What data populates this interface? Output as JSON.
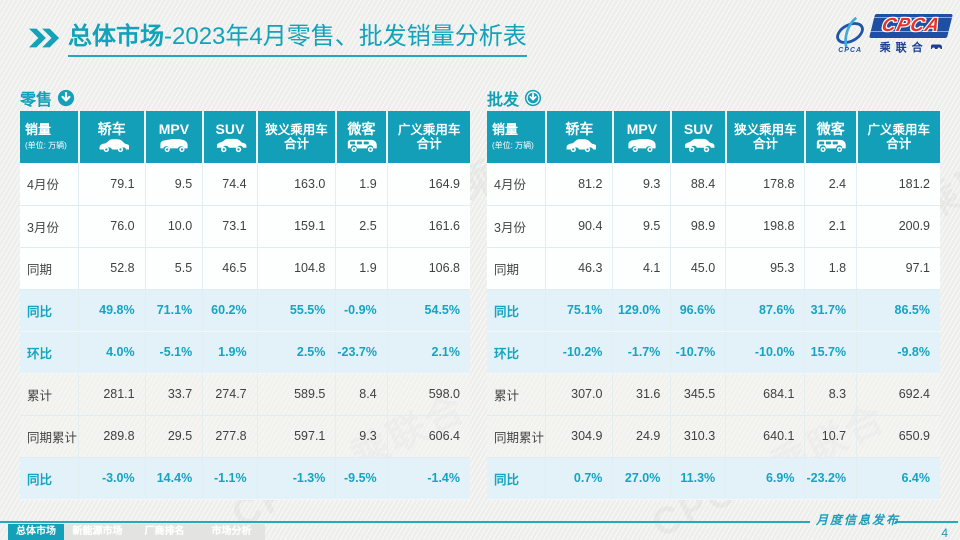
{
  "header": {
    "title_bold": "总体市场",
    "title_rest": "-2023年4月零售、批发销量分析表"
  },
  "logo": {
    "swoosh_text": "CPCA",
    "acronym": "CPCA",
    "cn_name": "乘联合"
  },
  "watermark": "CPCA 乘联合",
  "chart_data": [
    {
      "type": "table",
      "title": "零售",
      "header": {
        "label": "销量",
        "sub": "(单位: 万辆)"
      },
      "columns": [
        {
          "label": "轿车",
          "icon": "sedan-icon"
        },
        {
          "label": "MPV",
          "icon": "mpv-icon"
        },
        {
          "label": "SUV",
          "icon": "suv-icon"
        },
        {
          "label": "狭义乘用车",
          "label2": "合计"
        },
        {
          "label": "微客",
          "icon": "minibus-icon"
        },
        {
          "label": "广义乘用车",
          "label2": "合计"
        }
      ],
      "rows": [
        {
          "label": "4月份",
          "style": "plain",
          "values": [
            "79.1",
            "9.5",
            "74.4",
            "163.0",
            "1.9",
            "164.9"
          ]
        },
        {
          "label": "3月份",
          "style": "plain",
          "values": [
            "76.0",
            "10.0",
            "73.1",
            "159.1",
            "2.5",
            "161.6"
          ]
        },
        {
          "label": "同期",
          "style": "plain",
          "values": [
            "52.8",
            "5.5",
            "46.5",
            "104.8",
            "1.9",
            "106.8"
          ]
        },
        {
          "label": "同比",
          "style": "highlight",
          "values": [
            "49.8%",
            "71.1%",
            "60.2%",
            "55.5%",
            "-0.9%",
            "54.5%"
          ]
        },
        {
          "label": "环比",
          "style": "highlight",
          "values": [
            "4.0%",
            "-5.1%",
            "1.9%",
            "2.5%",
            "-23.7%",
            "2.1%"
          ]
        },
        {
          "label": "累计",
          "style": "hatch",
          "values": [
            "281.1",
            "33.7",
            "274.7",
            "589.5",
            "8.4",
            "598.0"
          ]
        },
        {
          "label": "同期累计",
          "style": "hatch",
          "values": [
            "289.8",
            "29.5",
            "277.8",
            "597.1",
            "9.3",
            "606.4"
          ]
        },
        {
          "label": "同比",
          "style": "highlight",
          "values": [
            "-3.0%",
            "14.4%",
            "-1.1%",
            "-1.3%",
            "-9.5%",
            "-1.4%"
          ]
        }
      ]
    },
    {
      "type": "table",
      "title": "批发",
      "header": {
        "label": "销量",
        "sub": "(单位: 万辆)"
      },
      "columns": [
        {
          "label": "轿车",
          "icon": "sedan-icon"
        },
        {
          "label": "MPV",
          "icon": "mpv-icon"
        },
        {
          "label": "SUV",
          "icon": "suv-icon"
        },
        {
          "label": "狭义乘用车",
          "label2": "合计"
        },
        {
          "label": "微客",
          "icon": "minibus-icon"
        },
        {
          "label": "广义乘用车",
          "label2": "合计"
        }
      ],
      "rows": [
        {
          "label": "4月份",
          "style": "plain",
          "values": [
            "81.2",
            "9.3",
            "88.4",
            "178.8",
            "2.4",
            "181.2"
          ]
        },
        {
          "label": "3月份",
          "style": "plain",
          "values": [
            "90.4",
            "9.5",
            "98.9",
            "198.8",
            "2.1",
            "200.9"
          ]
        },
        {
          "label": "同期",
          "style": "plain",
          "values": [
            "46.3",
            "4.1",
            "45.0",
            "95.3",
            "1.8",
            "97.1"
          ]
        },
        {
          "label": "同比",
          "style": "highlight",
          "values": [
            "75.1%",
            "129.0%",
            "96.6%",
            "87.6%",
            "31.7%",
            "86.5%"
          ]
        },
        {
          "label": "环比",
          "style": "highlight",
          "values": [
            "-10.2%",
            "-1.7%",
            "-10.7%",
            "-10.0%",
            "15.7%",
            "-9.8%"
          ]
        },
        {
          "label": "累计",
          "style": "hatch",
          "values": [
            "307.0",
            "31.6",
            "345.5",
            "684.1",
            "8.3",
            "692.4"
          ]
        },
        {
          "label": "同期累计",
          "style": "hatch",
          "values": [
            "304.9",
            "24.9",
            "310.3",
            "640.1",
            "10.7",
            "650.9"
          ]
        },
        {
          "label": "同比",
          "style": "highlight",
          "values": [
            "0.7%",
            "27.0%",
            "11.3%",
            "6.9%",
            "-23.2%",
            "6.4%"
          ]
        }
      ]
    }
  ],
  "footer": {
    "tabs": [
      {
        "label": "总体市场",
        "active": true
      },
      {
        "label": "新能源市场",
        "active": false
      },
      {
        "label": "厂商排名",
        "active": false
      },
      {
        "label": "市场分析",
        "active": false
      }
    ],
    "publish_label": "月度信息发布",
    "page_number": "4"
  },
  "colors": {
    "teal": "#13a0b8",
    "title_teal": "#12a3bb",
    "highlight_row_bg": "#e2f2f8",
    "highlight_text": "#16a4c2",
    "logo_blue": "#1d4fa4",
    "logo_red": "#e8332c"
  }
}
